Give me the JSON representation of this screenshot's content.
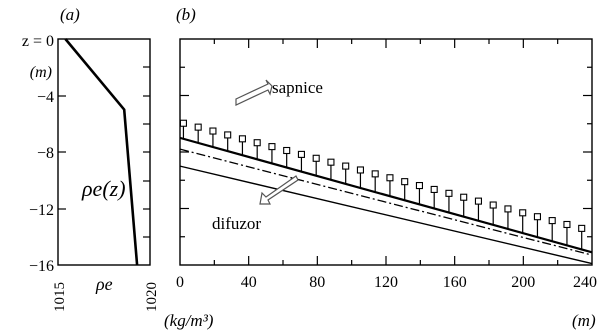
{
  "chart_data": [
    {
      "panel_label": "(a)",
      "type": "line",
      "series_label": "ρe(z)",
      "x_label": "ρe",
      "x_unit": "(kg/m³)",
      "x_ticks": [
        "1015",
        "1020"
      ],
      "xlim": [
        1015,
        1020
      ],
      "y_unit": "(m)",
      "y_top_label": "z = 0",
      "y_ticks": [
        "−4",
        "−8",
        "−12",
        "−16"
      ],
      "ylim": [
        -16,
        0
      ],
      "profile": [
        {
          "rho": 1015.4,
          "z": 0
        },
        {
          "rho": 1018.6,
          "z": -5
        },
        {
          "rho": 1019.3,
          "z": -16
        }
      ]
    },
    {
      "panel_label": "(b)",
      "type": "line",
      "x_unit": "(m)",
      "x_ticks": [
        "0",
        "40",
        "80",
        "120",
        "160",
        "200",
        "240"
      ],
      "xlim": [
        0,
        240
      ],
      "ylim": [
        -16,
        0
      ],
      "annotations": [
        {
          "text": "sapnice",
          "arrow_to": {
            "x": 22,
            "y": -5.4
          }
        },
        {
          "text": "difuzor",
          "arrow_to": {
            "x": 62,
            "y": -9.8
          }
        }
      ],
      "series": [
        {
          "style": "squares-with-stems",
          "x": [
            0,
            240
          ],
          "y_top": [
            -5.9,
            -13.6
          ],
          "y_base": [
            -7.0,
            -15.1
          ]
        },
        {
          "style": "dash-dot",
          "x": [
            0,
            240
          ],
          "y": [
            -7.8,
            -15.3
          ]
        },
        {
          "style": "solid",
          "x": [
            0,
            240
          ],
          "y": [
            -9.0,
            -15.9
          ]
        }
      ]
    }
  ]
}
